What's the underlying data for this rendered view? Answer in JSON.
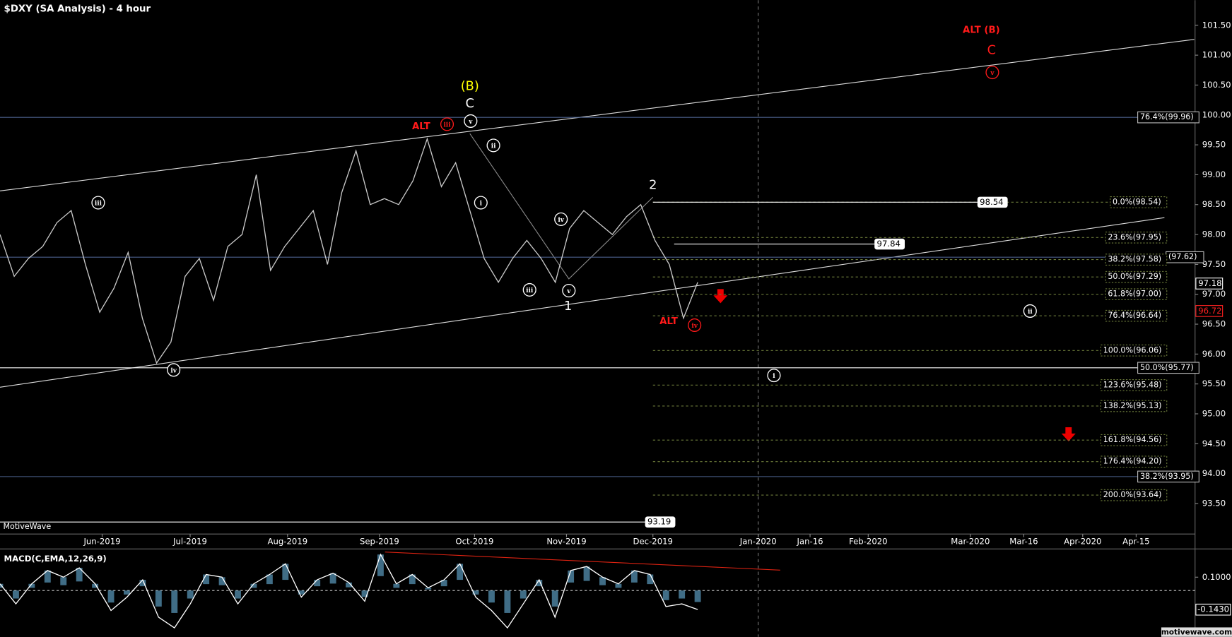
{
  "title": "$DXY (SA Analysis) - 4 hour",
  "watermark": "MotiveWave",
  "footer": "motivewave.com",
  "chart_data": {
    "type": "line",
    "ylim": [
      92.99,
      101.92
    ],
    "yticks": [
      {
        "value": 93.5,
        "label": "93.50"
      },
      {
        "value": 94,
        "label": "94.00"
      },
      {
        "value": 94.5,
        "label": "94.50"
      },
      {
        "value": 95,
        "label": "95.00"
      },
      {
        "value": 95.5,
        "label": "95.50"
      },
      {
        "value": 96,
        "label": "96.00"
      },
      {
        "value": 96.5,
        "label": "96.50"
      },
      {
        "value": 97,
        "label": "97.00"
      },
      {
        "value": 97.5,
        "label": "97.50"
      },
      {
        "value": 98,
        "label": "98.00"
      },
      {
        "value": 98.5,
        "label": "98.50"
      },
      {
        "value": 99,
        "label": "99.00"
      },
      {
        "value": 99.5,
        "label": "99.50"
      },
      {
        "value": 100,
        "label": "100.00"
      },
      {
        "value": 100.5,
        "label": "100.50"
      },
      {
        "value": 101,
        "label": "101.00"
      },
      {
        "value": 101.5,
        "label": "101.50"
      }
    ],
    "x_labels": [
      "Jun-2019",
      "Jul-2019",
      "Aug-2019",
      "Sep-2019",
      "Oct-2019",
      "Nov-2019",
      "Dec-2019",
      "Jan-2020",
      "Jan-16",
      "Feb-2020",
      "Mar-2020",
      "Mar-16",
      "Apr-2020",
      "Apr-15"
    ],
    "series": [
      {
        "color": "#c9c9c9",
        "values": [
          98.0,
          97.3,
          97.6,
          97.8,
          98.2,
          98.4,
          97.5,
          96.7,
          97.1,
          97.7,
          96.6,
          95.85,
          96.2,
          97.3,
          97.6,
          96.9,
          97.8,
          98.0,
          99.0,
          97.4,
          97.8,
          98.1,
          98.4,
          97.5,
          98.7,
          99.4,
          98.5,
          98.6,
          98.5,
          98.9,
          99.6,
          98.8,
          99.2,
          98.4,
          97.6,
          97.2,
          97.6,
          97.9,
          97.6,
          97.2,
          98.1,
          98.4,
          98.2,
          98.0,
          98.3,
          98.5,
          97.9,
          97.5,
          96.6,
          97.2
        ]
      }
    ],
    "fib_levels": [
      {
        "label": "0.0%(98.54)",
        "value": 98.54,
        "color": "#ffffff"
      },
      {
        "label": "23.6%(97.95)",
        "value": 97.95,
        "color": "#ffffff"
      },
      {
        "label": "38.2%(97.58)",
        "value": 97.58,
        "color": "#ffffff"
      },
      {
        "label": "50.0%(97.29)",
        "value": 97.29,
        "color": "#ffffff"
      },
      {
        "label": "61.8%(97.00)",
        "value": 97.0,
        "color": "#ffffff"
      },
      {
        "label": "76.4%(96.64)",
        "value": 96.64,
        "color": "#ffffff"
      },
      {
        "label": "100.0%(96.06)",
        "value": 96.06,
        "color": "#ffffff"
      },
      {
        "label": "123.6%(95.48)",
        "value": 95.48,
        "color": "#ffffff"
      },
      {
        "label": "138.2%(95.13)",
        "value": 95.13,
        "color": "#ffffff"
      },
      {
        "label": "161.8%(94.56)",
        "value": 94.56,
        "color": "#ffffff"
      },
      {
        "label": "176.4%(94.20)",
        "value": 94.2,
        "color": "#ffffff"
      },
      {
        "label": "200.0%(93.64)",
        "value": 93.64,
        "color": "#ffffff"
      }
    ],
    "long_levels": [
      {
        "label": "76.4%(99.96)",
        "value": 99.96,
        "color": "#4a5f8a"
      },
      {
        "label": "(97.62)",
        "value": 97.62,
        "color": "#4a5f8a"
      },
      {
        "label": "50.0%(95.77)",
        "value": 95.77,
        "color": "#ffffff"
      },
      {
        "label": "38.2%(93.95)",
        "value": 93.95,
        "color": "#4a5f8a"
      }
    ],
    "price_tags": [
      {
        "label": "98.54",
        "value": 98.54
      },
      {
        "label": "97.84",
        "value": 97.84
      },
      {
        "label": "93.19",
        "value": 93.19
      }
    ],
    "last_prices": [
      {
        "label": "97.18",
        "value": 97.18,
        "color": "#ffffff"
      },
      {
        "label": "96.72",
        "value": 96.72,
        "color": "#ff2020"
      }
    ],
    "wave_labels": [
      {
        "text": "(B)",
        "color": "#ffff00",
        "circle": false
      },
      {
        "text": "C",
        "color": "#ffffff",
        "circle": false
      },
      {
        "text": "v",
        "color": "#ffffff",
        "circle": true
      },
      {
        "text": "ALT",
        "color": "#ff1a1a",
        "circle": false
      },
      {
        "text": "iii",
        "color": "#ff1a1a",
        "circle": true
      },
      {
        "text": "ii",
        "color": "#ffffff",
        "circle": true
      },
      {
        "text": "i",
        "color": "#ffffff",
        "circle": true
      },
      {
        "text": "iii",
        "color": "#ffffff",
        "circle": true
      },
      {
        "text": "iv",
        "color": "#ffffff",
        "circle": true
      },
      {
        "text": "iii",
        "color": "#ffffff",
        "circle": true
      },
      {
        "text": "v",
        "color": "#ffffff",
        "circle": true
      },
      {
        "text": "1",
        "color": "#ffffff",
        "circle": false
      },
      {
        "text": "iv",
        "color": "#ffffff",
        "circle": true
      },
      {
        "text": "2",
        "color": "#ffffff",
        "circle": false
      },
      {
        "text": "ALT",
        "color": "#ff1a1a",
        "circle": false
      },
      {
        "text": "iv",
        "color": "#ff1a1a",
        "circle": true
      },
      {
        "text": "ii",
        "color": "#ffffff",
        "circle": true
      },
      {
        "text": "i",
        "color": "#ffffff",
        "circle": true
      },
      {
        "text": "ALT (B)",
        "color": "#ff1a1a",
        "circle": false
      },
      {
        "text": "C",
        "color": "#ff1a1a",
        "circle": false
      },
      {
        "text": "v",
        "color": "#ff1a1a",
        "circle": true
      }
    ],
    "macd": {
      "title": "MACD(C,EMA,12,26,9)",
      "ylim": [
        -0.347,
        0.306
      ],
      "yticks": [
        {
          "value": 0.1,
          "label": "0.1000"
        }
      ],
      "color": "#ffffff",
      "bar_color": "#5b9bbf",
      "values": [
        0.05,
        -0.1,
        0.05,
        0.15,
        0.1,
        0.17,
        0.05,
        -0.15,
        -0.05,
        0.08,
        -0.2,
        -0.28,
        -0.1,
        0.12,
        0.1,
        -0.1,
        0.05,
        0.12,
        0.2,
        -0.05,
        0.08,
        0.13,
        0.06,
        -0.08,
        0.27,
        0.05,
        0.12,
        0.02,
        0.08,
        0.2,
        -0.05,
        -0.15,
        -0.28,
        -0.1,
        0.08,
        -0.2,
        0.15,
        0.18,
        0.1,
        0.05,
        0.15,
        0.12,
        -0.12,
        -0.1,
        -0.143
      ],
      "last": {
        "value": -0.143,
        "label": "-0.1430"
      }
    }
  }
}
